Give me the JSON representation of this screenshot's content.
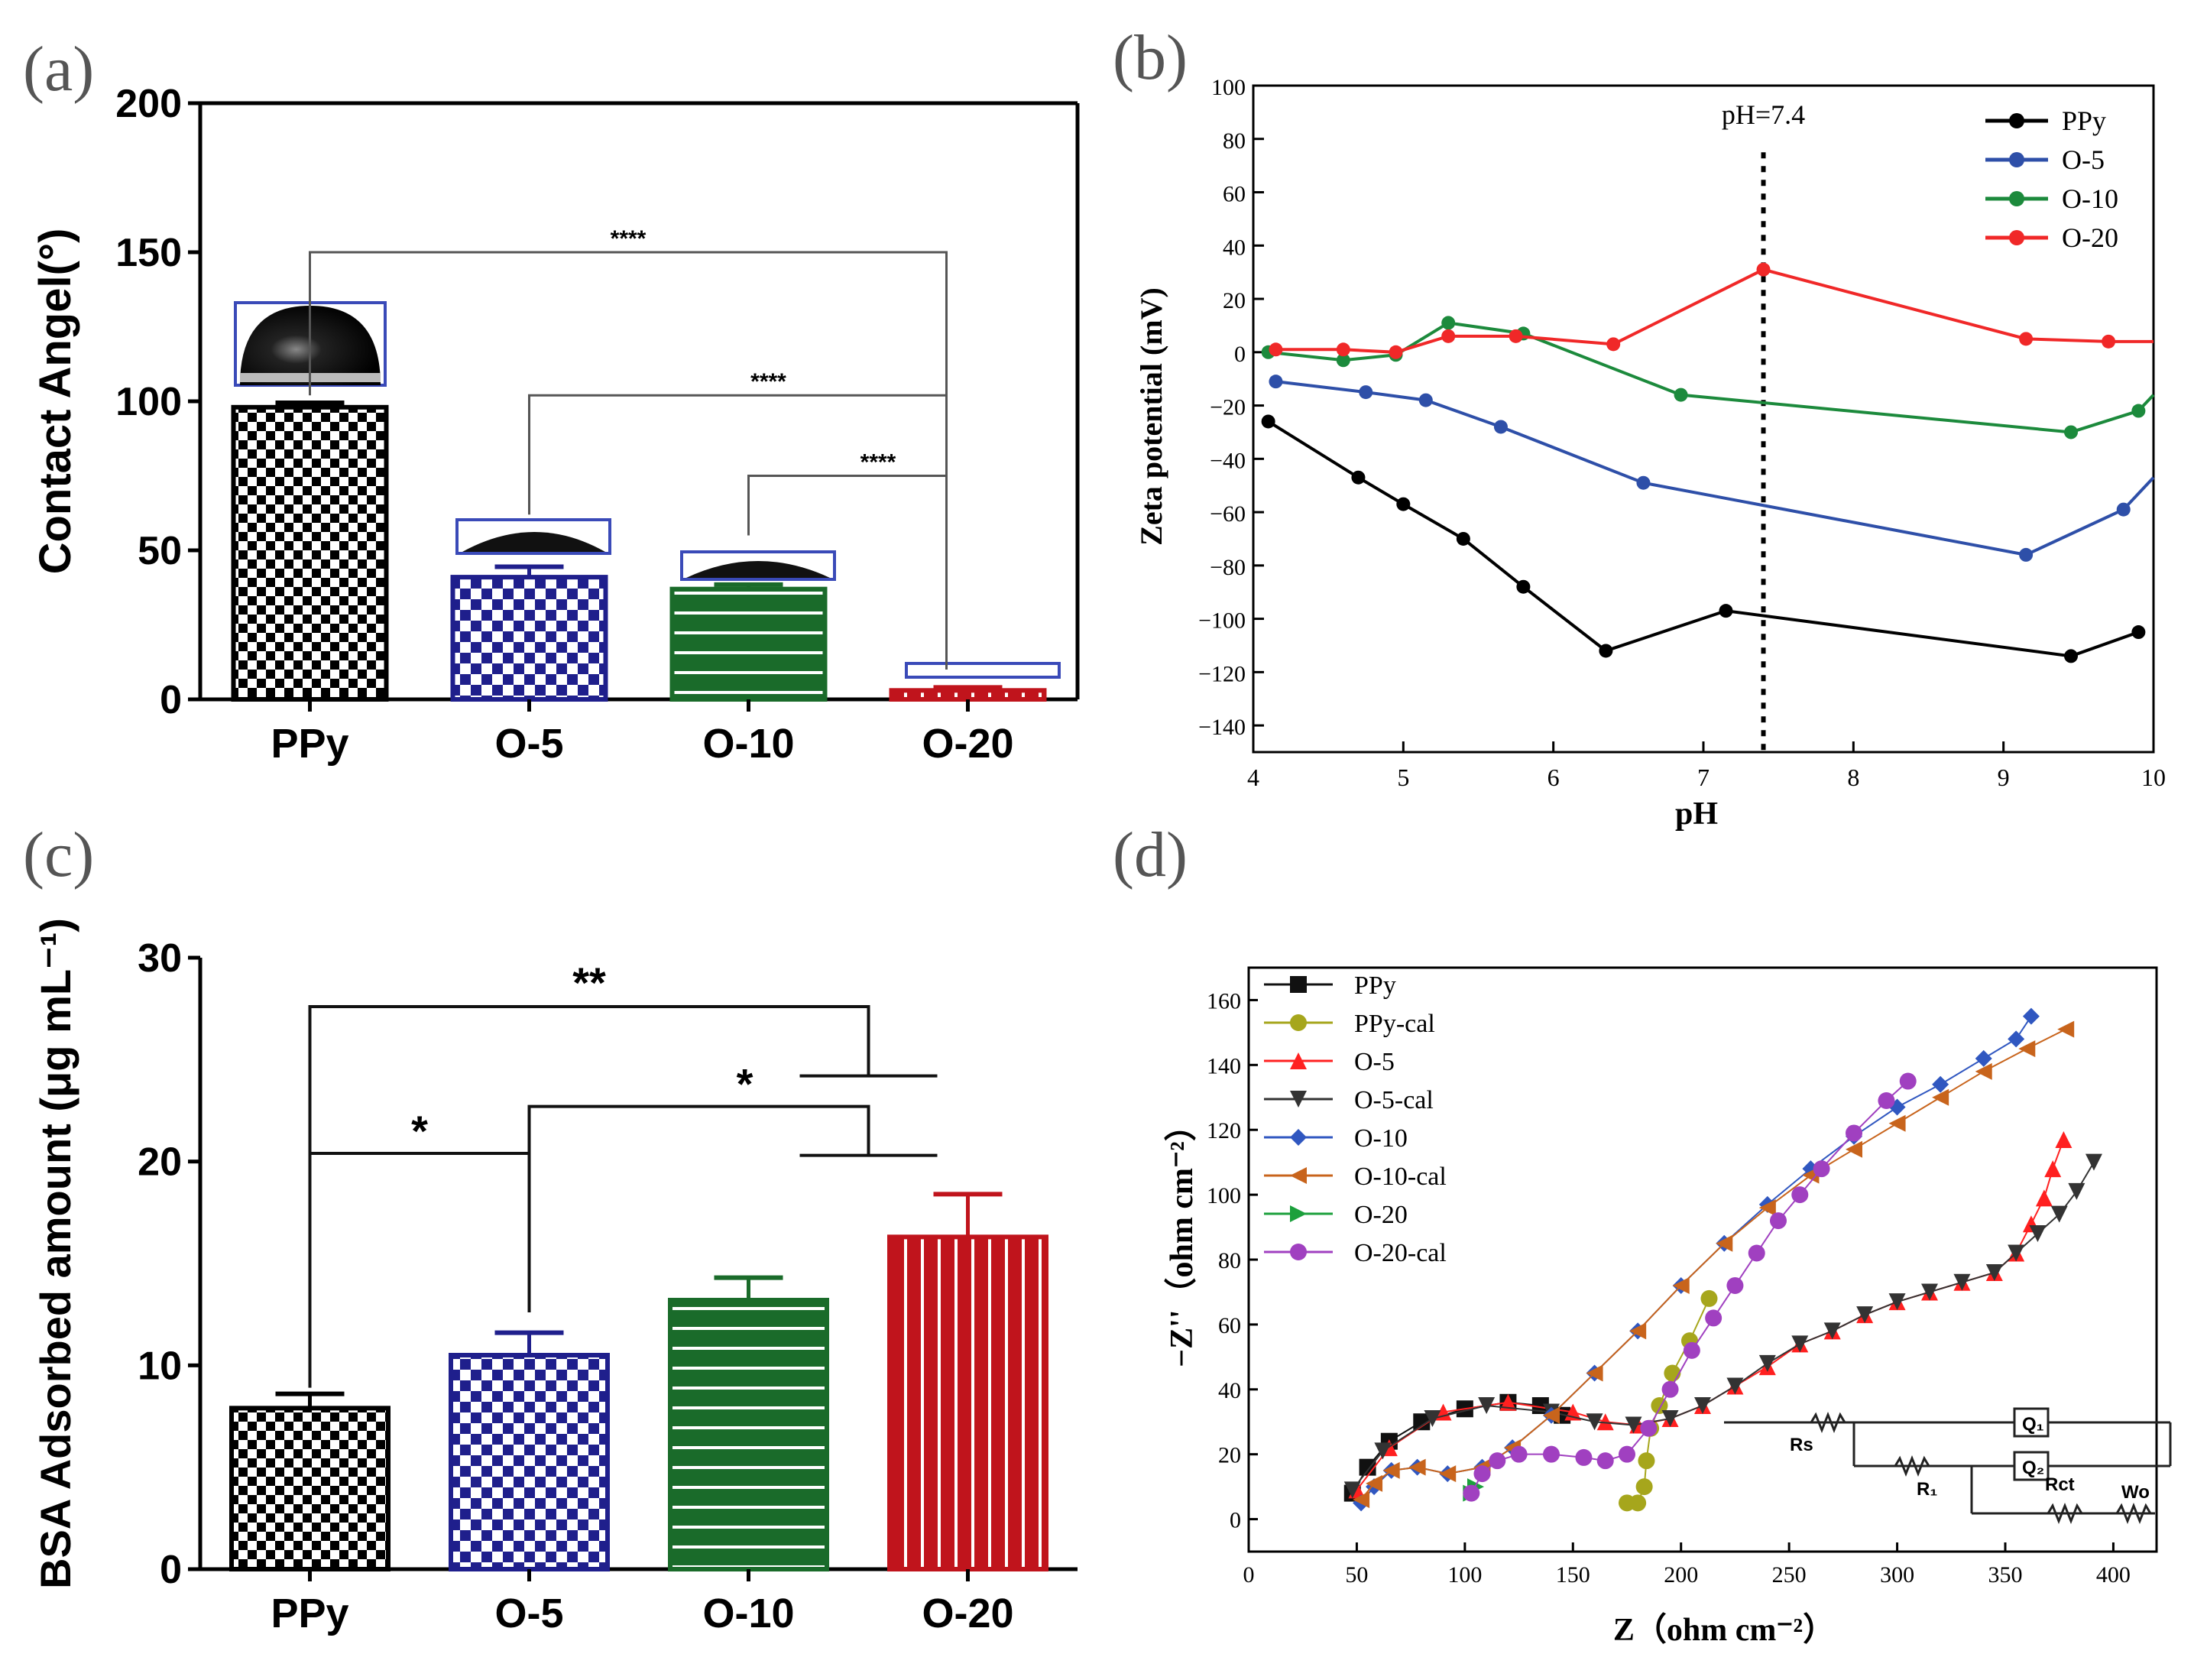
{
  "figure": {
    "panel_labels": [
      "(a)",
      "(b)",
      "(c)",
      "(d)"
    ]
  },
  "chart_data": [
    {
      "id": "a",
      "type": "bar",
      "categories": [
        "PPy",
        "O-5",
        "O-10",
        "O-20"
      ],
      "values": [
        98,
        41,
        37,
        3
      ],
      "errors": [
        1.5,
        3.5,
        1.5,
        1
      ],
      "bar_colors": [
        "#000000",
        "#1f1f8c",
        "#1a6b2a",
        "#c0141c"
      ],
      "patterns": [
        "checker",
        "checker",
        "hstripe",
        "vstripe"
      ],
      "title": "",
      "xlabel": "",
      "ylabel": "Contact Angel(°)",
      "ylim": [
        0,
        200
      ],
      "yticks": [
        0,
        50,
        100,
        150,
        200
      ],
      "significance": [
        {
          "from": "PPy",
          "to": "O-20",
          "label": "****"
        },
        {
          "from": "O-5",
          "to": "O-20",
          "label": "****"
        },
        {
          "from": "O-10",
          "to": "O-20",
          "label": "****"
        }
      ]
    },
    {
      "id": "b",
      "type": "line",
      "title": "",
      "xlabel": "pH",
      "ylabel": "Zeta potential (mV)",
      "xlim": [
        4,
        10
      ],
      "ylim": [
        -150,
        100
      ],
      "xticks": [
        4,
        5,
        6,
        7,
        8,
        9,
        10
      ],
      "yticks": [
        -140,
        -120,
        -100,
        -80,
        -60,
        -40,
        -20,
        0,
        20,
        40,
        60,
        80,
        100
      ],
      "vline": {
        "x": 7.4,
        "label": "pH=7.4"
      },
      "series": [
        {
          "name": "PPy",
          "color": "#000000",
          "x": [
            4.1,
            4.7,
            5.0,
            5.4,
            5.8,
            6.35,
            7.15,
            9.45,
            9.9
          ],
          "y": [
            -26,
            -47,
            -57,
            -70,
            -88,
            -112,
            -97,
            -114,
            -105
          ]
        },
        {
          "name": "O-5",
          "color": "#2e4fa8",
          "x": [
            4.15,
            4.75,
            5.15,
            5.65,
            6.6,
            9.15,
            9.8,
            10.0
          ],
          "y": [
            -11,
            -15,
            -18,
            -28,
            -49,
            -76,
            -59,
            -47
          ]
        },
        {
          "name": "O-10",
          "color": "#1c8a3c",
          "x": [
            4.1,
            4.6,
            4.95,
            5.3,
            5.8,
            6.85,
            9.45,
            9.9,
            10.0
          ],
          "y": [
            0,
            -3,
            -1,
            11,
            7,
            -16,
            -30,
            -22,
            -16
          ]
        },
        {
          "name": "O-20",
          "color": "#f02828",
          "x": [
            4.15,
            4.6,
            4.95,
            5.3,
            5.75,
            6.4,
            7.4,
            9.15,
            9.7,
            10.0
          ],
          "y": [
            1,
            1,
            0,
            6,
            6,
            3,
            31,
            5,
            4,
            4
          ]
        }
      ]
    },
    {
      "id": "c",
      "type": "bar",
      "categories": [
        "PPy",
        "O-5",
        "O-10",
        "O-20"
      ],
      "values": [
        7.9,
        10.5,
        13.2,
        16.3
      ],
      "errors": [
        0.7,
        1.1,
        1.1,
        2.1
      ],
      "bar_colors": [
        "#000000",
        "#1f1f8c",
        "#1a6b2a",
        "#c0141c"
      ],
      "patterns": [
        "checker",
        "checker",
        "hstripe",
        "vstripe"
      ],
      "title": "",
      "xlabel": "",
      "ylabel": "BSA Adsorbed amount (μg mL⁻¹)",
      "ylim": [
        0,
        30
      ],
      "yticks": [
        0,
        10,
        20,
        30
      ],
      "significance": [
        {
          "from": "PPy",
          "to": "O-20",
          "label": "**"
        },
        {
          "from": "PPy",
          "to": "O-5",
          "label": "*"
        },
        {
          "from": "O-5",
          "to": "O-20",
          "label": "*"
        }
      ]
    },
    {
      "id": "d",
      "type": "scatter",
      "title": "",
      "xlabel": "Z（ohm cm⁻²）",
      "ylabel": "−Z''（ohm cm⁻²）",
      "xlim": [
        0,
        420
      ],
      "ylim": [
        -10,
        170
      ],
      "xticks": [
        0,
        50,
        100,
        150,
        200,
        250,
        300,
        350,
        400
      ],
      "yticks": [
        0,
        20,
        40,
        60,
        80,
        100,
        120,
        140,
        160
      ],
      "series": [
        {
          "name": "PPy",
          "color": "#111111",
          "marker": "square",
          "x": [
            48,
            55,
            65,
            80,
            100,
            120,
            135,
            145
          ],
          "y": [
            8,
            16,
            24,
            30,
            34,
            36,
            35,
            32
          ]
        },
        {
          "name": "PPy-cal",
          "color": "#a6a61c",
          "marker": "circle",
          "x": [
            175,
            180,
            183,
            184,
            186,
            190,
            196,
            204,
            213
          ],
          "y": [
            5,
            5,
            10,
            18,
            28,
            35,
            45,
            55,
            68
          ]
        },
        {
          "name": "O-5",
          "color": "#ff2020",
          "marker": "triangle-up",
          "x": [
            50,
            65,
            90,
            120,
            150,
            165,
            180,
            195,
            210,
            225,
            240,
            255,
            270,
            285,
            300,
            315,
            330,
            345,
            355,
            362,
            368,
            372,
            377
          ],
          "y": [
            9,
            22,
            33,
            36,
            33,
            30,
            29,
            31,
            35,
            41,
            47,
            54,
            58,
            63,
            67,
            70,
            73,
            76,
            82,
            91,
            99,
            108,
            117
          ]
        },
        {
          "name": "O-5-cal",
          "color": "#333333",
          "marker": "triangle-down",
          "x": [
            48,
            62,
            85,
            110,
            140,
            160,
            178,
            195,
            210,
            225,
            240,
            255,
            270,
            285,
            300,
            315,
            330,
            345,
            355,
            365,
            375,
            383,
            391
          ],
          "y": [
            9,
            21,
            31,
            35,
            33,
            30,
            29,
            31,
            35,
            41,
            48,
            54,
            58,
            63,
            67,
            70,
            73,
            76,
            82,
            88,
            94,
            101,
            110
          ]
        },
        {
          "name": "O-10",
          "color": "#3057c0",
          "marker": "diamond",
          "x": [
            52,
            58,
            66,
            78,
            92,
            108,
            122,
            140,
            160,
            180,
            200,
            220,
            240,
            260,
            280,
            300,
            320,
            340,
            355,
            362
          ],
          "y": [
            5,
            10,
            15,
            16,
            14,
            16,
            22,
            32,
            45,
            58,
            72,
            85,
            97,
            108,
            118,
            127,
            134,
            142,
            148,
            155
          ]
        },
        {
          "name": "O-10-cal",
          "color": "#c8641c",
          "marker": "triangle-left",
          "x": [
            52,
            58,
            66,
            78,
            92,
            108,
            122,
            140,
            160,
            180,
            200,
            220,
            240,
            260,
            280,
            300,
            320,
            340,
            360,
            378
          ],
          "y": [
            6,
            11,
            15,
            16,
            14,
            16,
            22,
            32,
            45,
            58,
            72,
            85,
            96,
            106,
            114,
            122,
            130,
            138,
            145,
            151
          ]
        },
        {
          "name": "O-20",
          "color": "#1ca03c",
          "marker": "triangle-right",
          "x": [
            103,
            105
          ],
          "y": [
            8,
            10
          ]
        },
        {
          "name": "O-20-cal",
          "color": "#a040c0",
          "marker": "circle",
          "x": [
            103,
            108,
            115,
            125,
            140,
            155,
            165,
            175,
            185,
            195,
            205,
            215,
            225,
            235,
            245,
            255,
            265,
            280,
            295,
            305
          ],
          "y": [
            8,
            14,
            18,
            20,
            20,
            19,
            18,
            20,
            28,
            40,
            52,
            62,
            72,
            82,
            92,
            100,
            108,
            119,
            129,
            135
          ]
        }
      ],
      "inset_labels": [
        "Rs",
        "Q₁",
        "R₁",
        "Q₂",
        "Rct",
        "Wo"
      ]
    }
  ]
}
